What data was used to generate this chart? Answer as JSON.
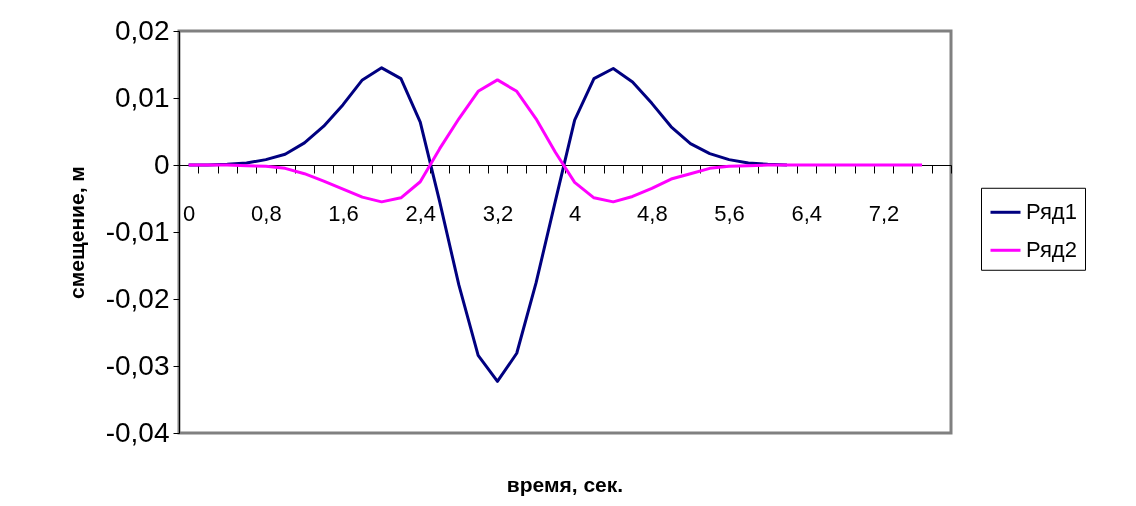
{
  "chart_data": {
    "type": "line",
    "xlabel": "время, сек.",
    "ylabel": "смещение, м",
    "categories": [
      "0",
      null,
      null,
      null,
      "0,8",
      null,
      null,
      null,
      "1,6",
      null,
      null,
      null,
      "2,4",
      null,
      null,
      null,
      "3,2",
      null,
      null,
      null,
      "4",
      null,
      null,
      null,
      "4,8",
      null,
      null,
      null,
      "5,6",
      null,
      null,
      null,
      "6,4",
      null,
      null,
      null,
      "7,2",
      null,
      null,
      null
    ],
    "series": [
      {
        "name": "Ряд1",
        "color": "#000080",
        "values": [
          0,
          0,
          0.0001,
          0.0003,
          0.0008,
          0.0016,
          0.0033,
          0.0058,
          0.009,
          0.0127,
          0.0145,
          0.0129,
          0.0064,
          -0.0054,
          -0.0179,
          -0.0284,
          -0.0323,
          -0.0281,
          -0.0176,
          -0.0054,
          0.0067,
          0.0129,
          0.0144,
          0.0124,
          0.0092,
          0.0057,
          0.0032,
          0.0017,
          0.0008,
          0.0003,
          0.0001,
          0,
          null,
          null,
          null,
          null,
          null,
          null,
          null,
          null
        ]
      },
      {
        "name": "Ряд2",
        "color": "#ff00ff",
        "values": [
          0,
          0,
          0,
          -0.0001,
          -0.0002,
          -0.0005,
          -0.0013,
          -0.0024,
          -0.0036,
          -0.0048,
          -0.0055,
          -0.0049,
          -0.0025,
          0.0024,
          0.0069,
          0.011,
          0.0127,
          0.011,
          0.0069,
          0.0019,
          -0.0026,
          -0.0049,
          -0.0055,
          -0.0047,
          -0.0035,
          -0.0021,
          -0.0013,
          -0.0005,
          -0.0002,
          -0.0001,
          0,
          0,
          0,
          0,
          0,
          0,
          0,
          0,
          0,
          null
        ]
      }
    ],
    "ylim": [
      -0.04,
      0.02
    ],
    "yticks": [
      {
        "value": -0.04,
        "label": "-0,04"
      },
      {
        "value": -0.03,
        "label": "-0,03"
      },
      {
        "value": -0.02,
        "label": "-0,02"
      },
      {
        "value": -0.01,
        "label": "-0,01"
      },
      {
        "value": 0,
        "label": "0"
      },
      {
        "value": 0.01,
        "label": "0,01"
      },
      {
        "value": 0.02,
        "label": "0,02"
      }
    ],
    "grid": false,
    "legend": "right",
    "marker": "none",
    "line_style": "solid"
  }
}
